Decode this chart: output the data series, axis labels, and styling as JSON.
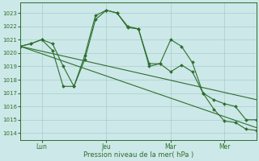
{
  "background_color": "#cce8e8",
  "grid_color": "#aacccc",
  "line_color": "#2d6e2d",
  "ylabel_ticks": [
    1014,
    1015,
    1016,
    1017,
    1018,
    1019,
    1020,
    1021,
    1022,
    1023
  ],
  "x_tick_labels": [
    "Lun",
    "Jeu",
    "Mar",
    "Mer"
  ],
  "x_tick_positions": [
    2,
    8,
    14,
    19
  ],
  "xlabel": "Pression niveau de la mer( hPa )",
  "ylim": [
    1013.5,
    1023.8
  ],
  "xlim": [
    0,
    22
  ],
  "trend1_x": [
    0,
    22
  ],
  "trend1_y": [
    1020.5,
    1014.4
  ],
  "trend2_x": [
    0,
    22
  ],
  "trend2_y": [
    1020.5,
    1016.5
  ],
  "series1_x": [
    0,
    1,
    2,
    3,
    4,
    5,
    6,
    7,
    8,
    9,
    10,
    11,
    12,
    13,
    14,
    15,
    16,
    17,
    18,
    19,
    20,
    21,
    22
  ],
  "series1_y": [
    1020.5,
    1020.7,
    1021.0,
    1020.7,
    1019.0,
    1017.5,
    1019.8,
    1022.8,
    1023.2,
    1023.0,
    1022.0,
    1021.8,
    1019.2,
    1019.2,
    1021.0,
    1020.5,
    1019.3,
    1017.0,
    1016.5,
    1016.2,
    1016.0,
    1015.0,
    1015.0
  ],
  "series2_x": [
    0,
    1,
    2,
    3,
    4,
    5,
    6,
    7,
    8,
    9,
    10,
    11,
    12,
    13,
    14,
    15,
    16,
    17,
    18,
    19,
    20,
    21,
    22
  ],
  "series2_y": [
    1020.5,
    1020.7,
    1021.0,
    1020.2,
    1017.5,
    1017.5,
    1019.5,
    1022.5,
    1023.2,
    1023.0,
    1021.9,
    1021.8,
    1019.0,
    1019.2,
    1018.6,
    1019.1,
    1018.6,
    1017.0,
    1015.8,
    1014.9,
    1014.8,
    1014.3,
    1014.2
  ],
  "marker": "D",
  "markersize": 2.0,
  "lw": 0.8
}
